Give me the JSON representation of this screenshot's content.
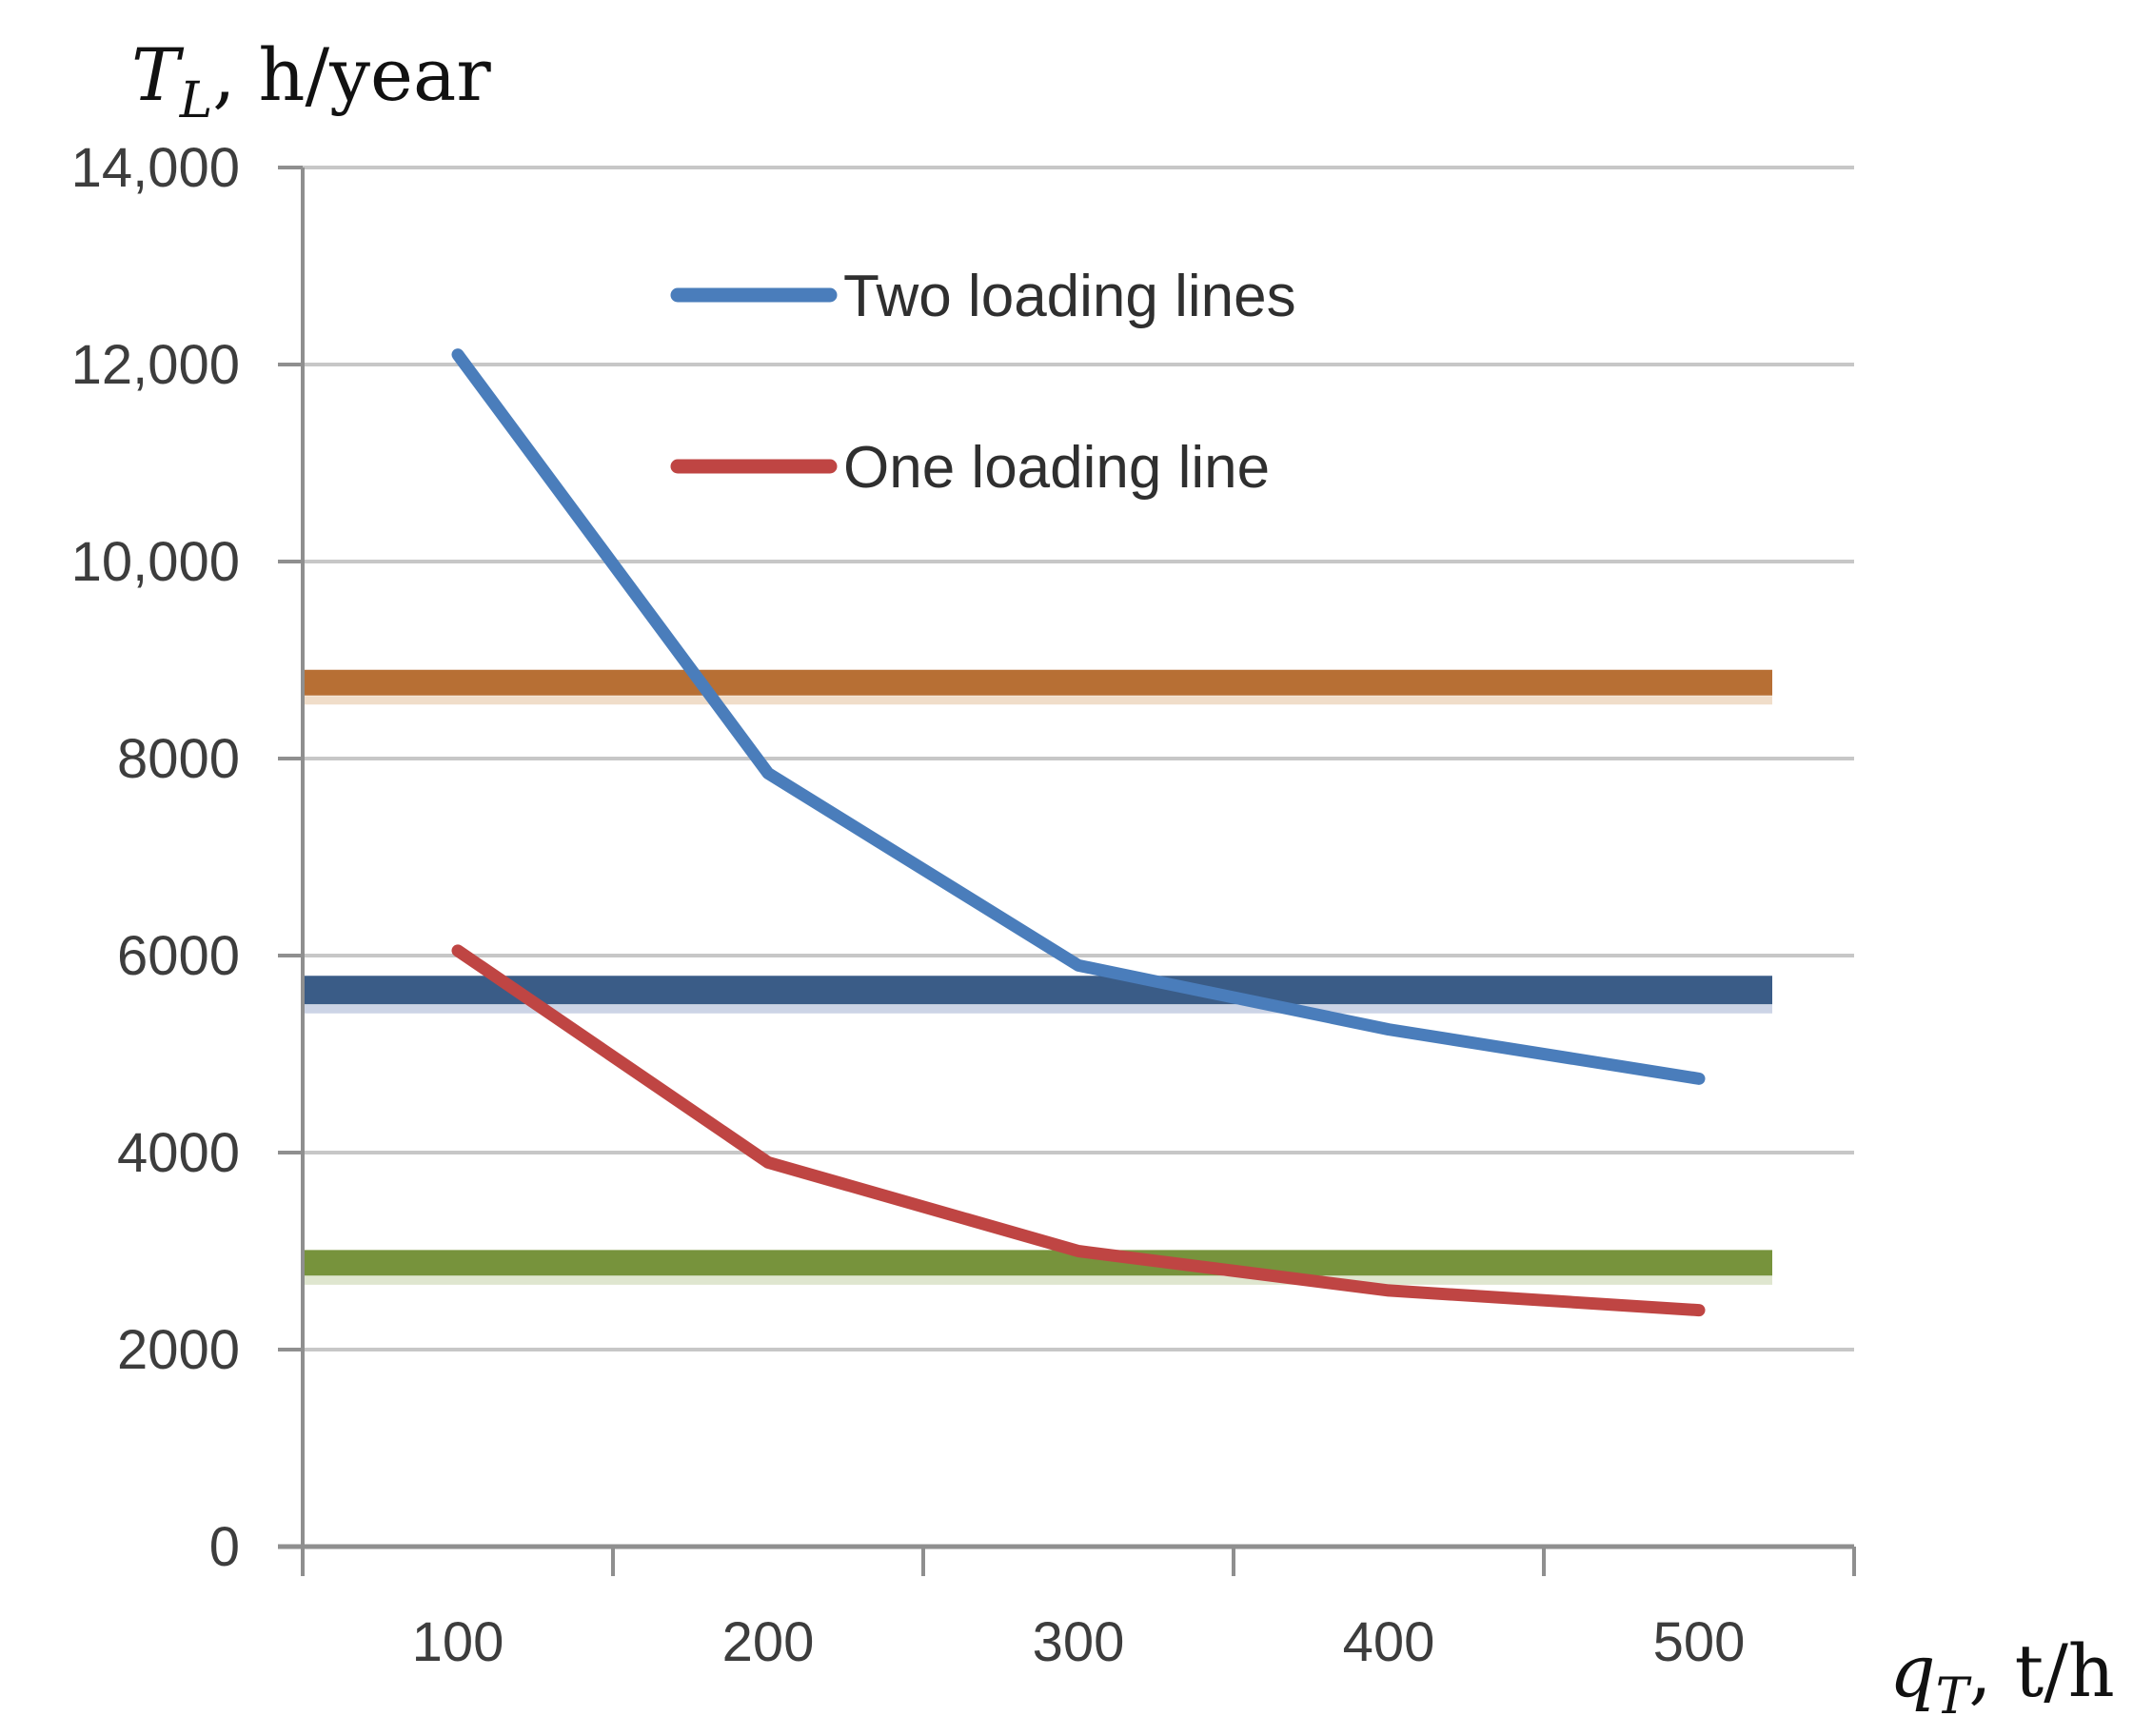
{
  "chart_data": {
    "type": "line",
    "title": "",
    "x_axis": {
      "title_parts": {
        "italic_letter": "q",
        "subscript": "T",
        "rest": ", t/h"
      },
      "categories": [
        100,
        200,
        300,
        400,
        500
      ],
      "tick_labels": [
        "100",
        "200",
        "300",
        "400",
        "500"
      ]
    },
    "y_axis": {
      "title_parts": {
        "italic_letter": "T",
        "subscript": "L",
        "rest": ", h/year"
      },
      "min": 0,
      "max": 14000,
      "step": 2000,
      "ticks": [
        {
          "value": 0,
          "label": "0"
        },
        {
          "value": 2000,
          "label": "2000"
        },
        {
          "value": 4000,
          "label": "4000"
        },
        {
          "value": 6000,
          "label": "6000"
        },
        {
          "value": 8000,
          "label": "8000"
        },
        {
          "value": 10000,
          "label": "10,000"
        },
        {
          "value": 12000,
          "label": "12,000"
        },
        {
          "value": 14000,
          "label": "14,000"
        }
      ]
    },
    "series": [
      {
        "name": "Two loading lines",
        "color": "#4a7dbb",
        "values": [
          12100,
          7850,
          5900,
          5250,
          4750
        ]
      },
      {
        "name": "One loading line",
        "color": "#bf4543",
        "values": [
          6050,
          3900,
          3000,
          2600,
          2400
        ]
      }
    ],
    "reference_lines": [
      {
        "value": 8770,
        "color": "#b76f34",
        "shadow": "#f0ddc9",
        "thickness": 27
      },
      {
        "value": 5650,
        "color": "#3a5c87",
        "shadow": "#ccd4e6",
        "thickness": 30
      },
      {
        "value": 2880,
        "color": "#77933c",
        "shadow": "#dfe6cf",
        "thickness": 27
      }
    ],
    "legend": {
      "position": "upper-center-inside",
      "items": [
        {
          "label": "Two loading lines",
          "color": "#4a7dbb"
        },
        {
          "label": "One loading line",
          "color": "#bf4543"
        }
      ]
    },
    "grid": true,
    "style": {
      "background": "#ffffff",
      "grid_color": "#c7c7c7",
      "axis_color": "#8f8f8f",
      "tick_label_color": "#3d3d3d",
      "legend_text_color": "#2f2f2f"
    }
  }
}
